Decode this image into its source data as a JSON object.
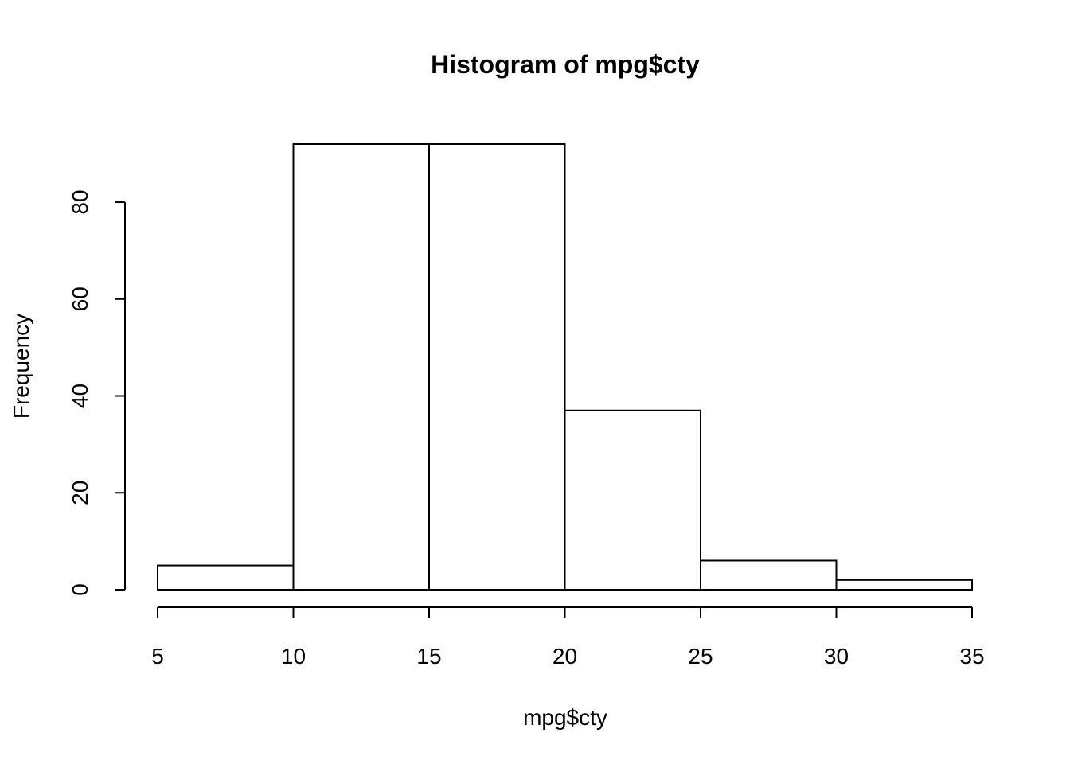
{
  "chart_data": {
    "type": "histogram",
    "title": "Histogram of mpg$cty",
    "x_label": "mpg$cty",
    "y_label": "Frequency",
    "bins": [
      5,
      10,
      15,
      20,
      25,
      30,
      35
    ],
    "values": [
      5,
      92,
      92,
      37,
      6,
      2
    ],
    "color": "#ffffff",
    "edge_color": "#000000",
    "xlim": [
      5,
      35
    ],
    "xticks": [
      5,
      10,
      15,
      20,
      25,
      30,
      35
    ],
    "ylim": [
      0,
      92
    ],
    "yticks": [
      0,
      20,
      40,
      60,
      80
    ],
    "grid": false
  }
}
